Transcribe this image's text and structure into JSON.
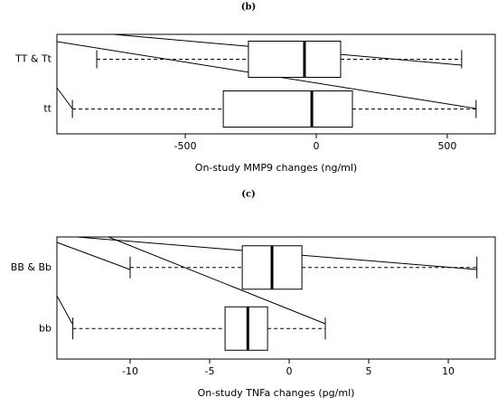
{
  "chart_data": [
    {
      "type": "box",
      "title": "(b)",
      "xlabel": "On-study MMP9 changes (ng/ml)",
      "categories": [
        "TT & Tt",
        "tt"
      ],
      "min": [
        -838,
        -931
      ],
      "q1": [
        -259,
        -355
      ],
      "median": [
        -45,
        -17
      ],
      "q3": [
        93,
        138
      ],
      "max": [
        555,
        610
      ],
      "xlim": [
        -990,
        683
      ],
      "xticks": [
        -500,
        0,
        500
      ]
    },
    {
      "type": "box",
      "title": "(c)",
      "xlabel": "On-study TNFa changes (pg/ml)",
      "categories": [
        "BB & Bb",
        "bb"
      ],
      "min": [
        -10,
        -13.6
      ],
      "q1": [
        -2.95,
        -4.03
      ],
      "median": [
        -1.08,
        -2.6
      ],
      "q3": [
        0.8,
        -1.36
      ],
      "max": [
        11.8,
        2.27
      ],
      "xlim": [
        -14.6,
        12.95
      ],
      "xticks": [
        -10,
        -5,
        0,
        5,
        10
      ]
    }
  ]
}
